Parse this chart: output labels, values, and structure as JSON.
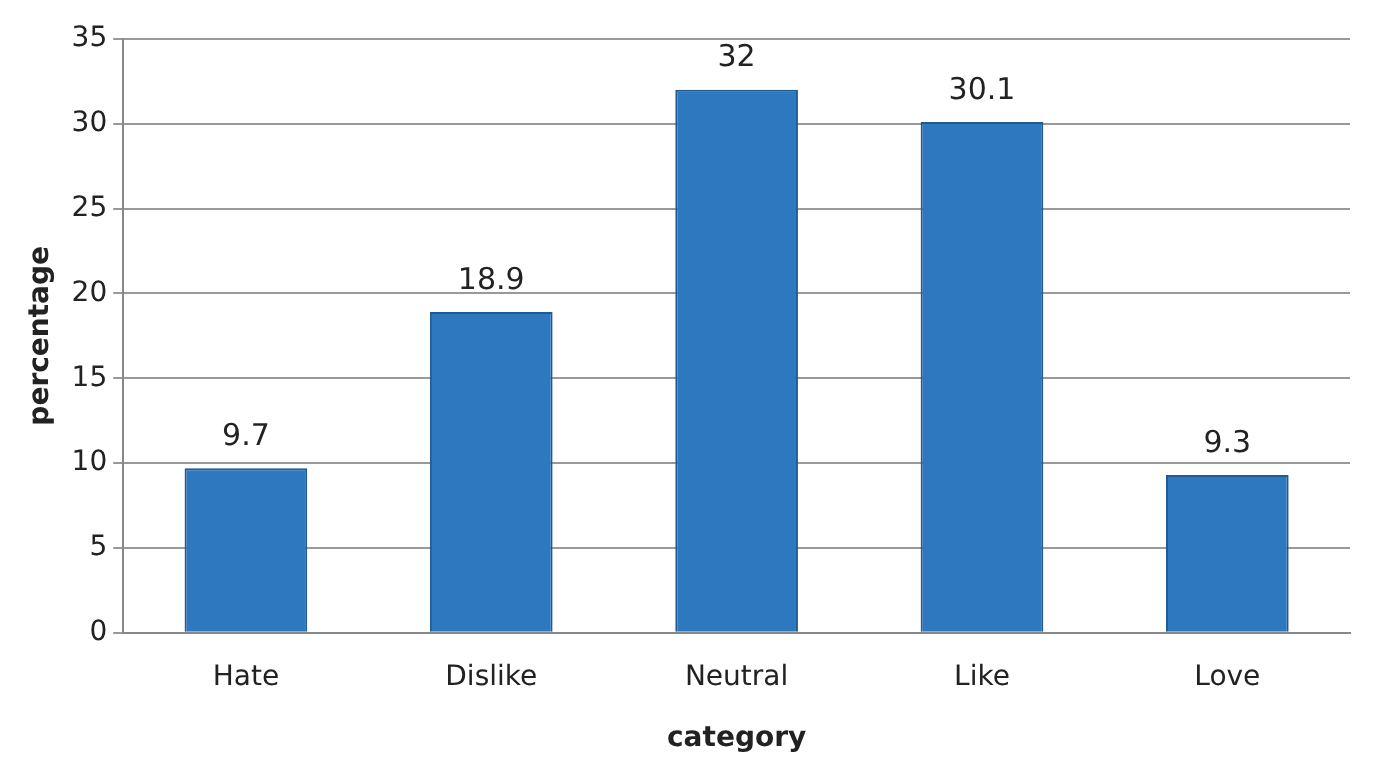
{
  "chart_data": {
    "type": "bar",
    "xlabel": "category",
    "ylabel": "percentage",
    "categories": [
      "Hate",
      "Dislike",
      "Neutral",
      "Like",
      "Love"
    ],
    "values": [
      9.7,
      18.9,
      32,
      30.1,
      9.3
    ],
    "color": "#2e78c0",
    "ylim": [
      0,
      35
    ],
    "yticks": [
      0,
      5,
      10,
      15,
      20,
      25,
      30,
      35
    ],
    "grid": "y",
    "data_labels": true,
    "legend": false
  }
}
